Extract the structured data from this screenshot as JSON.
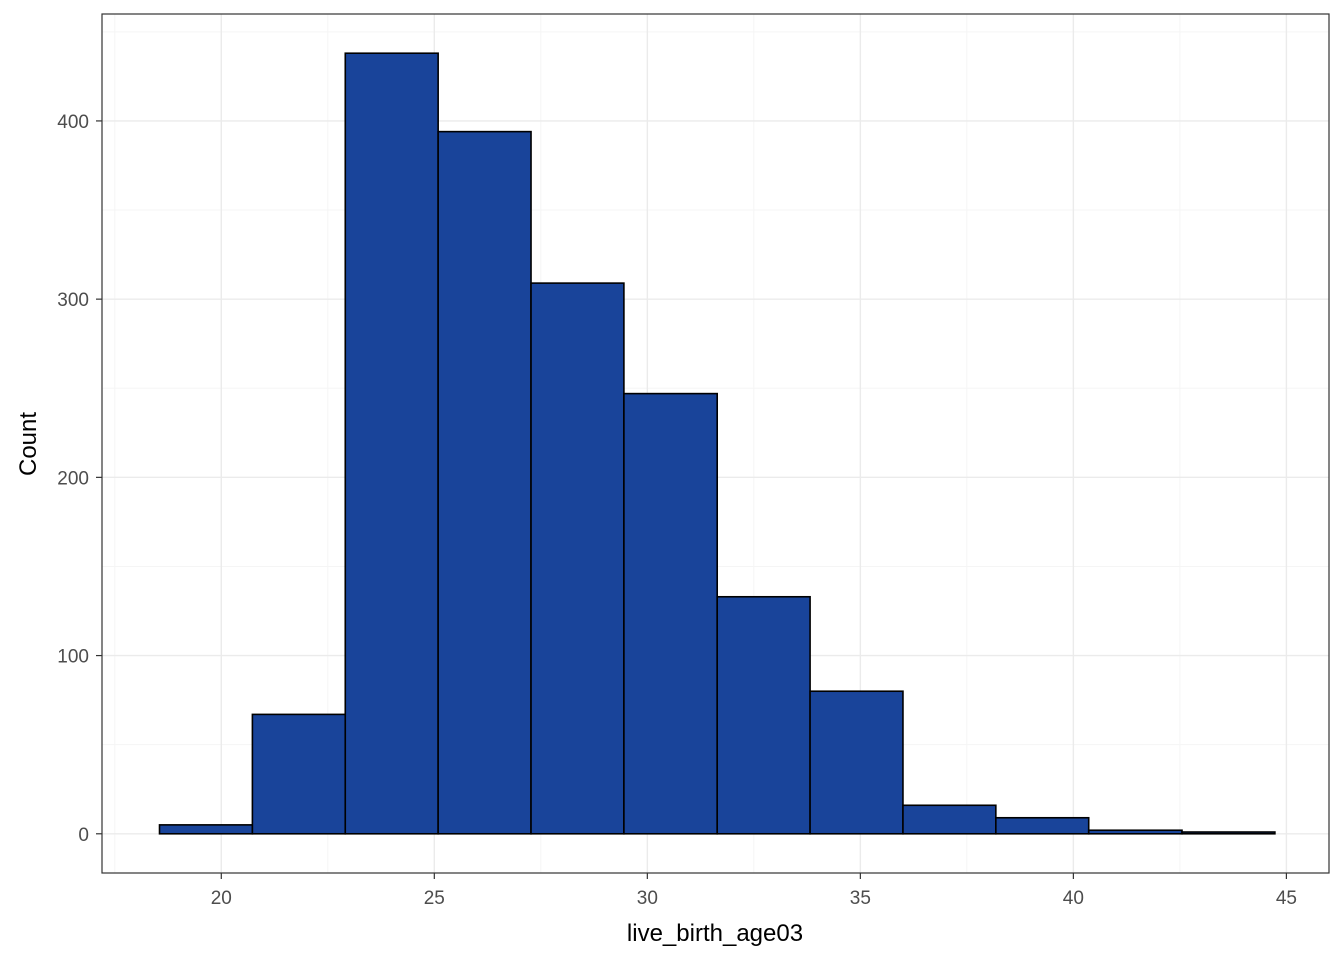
{
  "chart_data": {
    "type": "bar",
    "subtype": "histogram",
    "xlabel": "live_birth_age03",
    "ylabel": "Count",
    "xlim": [
      17.2,
      46.0
    ],
    "ylim": [
      -22,
      460
    ],
    "x_ticks": [
      20,
      25,
      30,
      35,
      40,
      45
    ],
    "y_ticks": [
      0,
      100,
      200,
      300,
      400
    ],
    "bins": [
      {
        "x0": 18.55,
        "x1": 20.73,
        "count": 5
      },
      {
        "x0": 20.73,
        "x1": 22.91,
        "count": 67
      },
      {
        "x0": 22.91,
        "x1": 25.09,
        "count": 438
      },
      {
        "x0": 25.09,
        "x1": 27.27,
        "count": 394
      },
      {
        "x0": 27.27,
        "x1": 29.45,
        "count": 309
      },
      {
        "x0": 29.45,
        "x1": 31.64,
        "count": 247
      },
      {
        "x0": 31.64,
        "x1": 33.82,
        "count": 133
      },
      {
        "x0": 33.82,
        "x1": 36.0,
        "count": 80
      },
      {
        "x0": 36.0,
        "x1": 38.18,
        "count": 16
      },
      {
        "x0": 38.18,
        "x1": 40.36,
        "count": 9
      },
      {
        "x0": 40.36,
        "x1": 42.55,
        "count": 2
      },
      {
        "x0": 42.55,
        "x1": 44.73,
        "count": 1
      }
    ],
    "bar_fill": "#19449A",
    "bar_stroke": "#000000",
    "panel_background": "#FFFFFF",
    "grid": true,
    "grid_major_color": "#EBEBEB",
    "grid_minor_color": "#F5F5F5",
    "legend": "none"
  }
}
